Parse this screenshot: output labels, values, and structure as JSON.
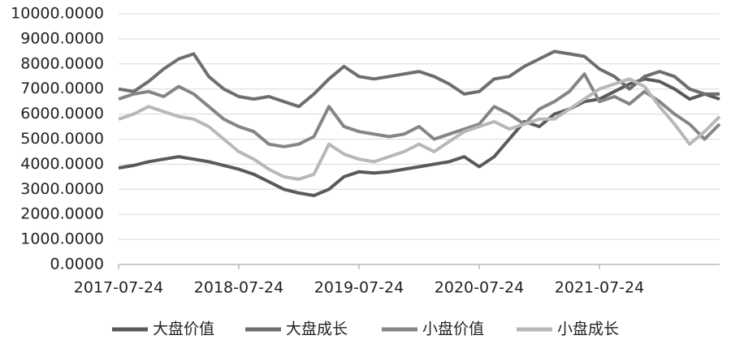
{
  "chart_data": {
    "type": "line",
    "categories": [
      "2017-07-24",
      null,
      null,
      null,
      null,
      null,
      null,
      null,
      "2018-07-24",
      null,
      null,
      null,
      null,
      null,
      null,
      null,
      "2019-07-24",
      null,
      null,
      null,
      null,
      null,
      null,
      null,
      "2020-07-24",
      null,
      null,
      null,
      null,
      null,
      null,
      null,
      "2021-07-24",
      null,
      null,
      null,
      null,
      null,
      null,
      null,
      null
    ],
    "series": [
      {
        "name": "大盘价值",
        "color": "#5a5a5a",
        "values": [
          3850,
          3950,
          4100,
          4200,
          4300,
          4200,
          4100,
          3950,
          3800,
          3600,
          3300,
          3000,
          2850,
          2750,
          3000,
          3500,
          3700,
          3650,
          3700,
          3800,
          3900,
          4000,
          4100,
          4300,
          3900,
          4300,
          5000,
          5700,
          5500,
          6000,
          6200,
          6500,
          6600,
          6900,
          7200,
          7400,
          7300,
          7000,
          6600,
          6800,
          6600
        ]
      },
      {
        "name": "大盘成长",
        "color": "#6e6e6e",
        "values": [
          7000,
          6900,
          7300,
          7800,
          8200,
          8400,
          7500,
          7000,
          6700,
          6600,
          6700,
          6500,
          6300,
          6800,
          7400,
          7900,
          7500,
          7400,
          7500,
          7600,
          7700,
          7500,
          7200,
          6800,
          6900,
          7400,
          7500,
          7900,
          8200,
          8500,
          8400,
          8300,
          7800,
          7500,
          7000,
          7500,
          7700,
          7500,
          7000,
          6800,
          6800
        ]
      },
      {
        "name": "小盘价值",
        "color": "#858585",
        "values": [
          6600,
          6800,
          6900,
          6700,
          7100,
          6800,
          6300,
          5800,
          5500,
          5300,
          4800,
          4700,
          4800,
          5100,
          6300,
          5500,
          5300,
          5200,
          5100,
          5200,
          5500,
          5000,
          5200,
          5400,
          5600,
          6300,
          6000,
          5600,
          6200,
          6500,
          6900,
          7600,
          6500,
          6700,
          6400,
          6900,
          6500,
          6000,
          5600,
          5000,
          5600
        ]
      },
      {
        "name": "小盘成长",
        "color": "#b8b8b8",
        "values": [
          5800,
          6000,
          6300,
          6100,
          5900,
          5800,
          5500,
          5000,
          4500,
          4200,
          3800,
          3500,
          3400,
          3600,
          4800,
          4400,
          4200,
          4100,
          4300,
          4500,
          4800,
          4500,
          4900,
          5300,
          5500,
          5700,
          5400,
          5600,
          5800,
          5800,
          6200,
          6600,
          7000,
          7200,
          7400,
          7100,
          6300,
          5600,
          4800,
          5300,
          5900
        ]
      }
    ],
    "ylim": [
      0,
      10000
    ],
    "yticks": [
      {
        "value": 0,
        "label": "0.0000"
      },
      {
        "value": 1000,
        "label": "1000.0000"
      },
      {
        "value": 2000,
        "label": "2000.0000"
      },
      {
        "value": 3000,
        "label": "3000.0000"
      },
      {
        "value": 4000,
        "label": "4000.0000"
      },
      {
        "value": 5000,
        "label": "5000.0000"
      },
      {
        "value": 6000,
        "label": "6000.0000"
      },
      {
        "value": 7000,
        "label": "7000.0000"
      },
      {
        "value": 8000,
        "label": "8000.0000"
      },
      {
        "value": 9000,
        "label": "9000.0000"
      },
      {
        "value": 10000,
        "label": "10000.0000"
      }
    ],
    "grid": true,
    "legend": "bottom"
  }
}
